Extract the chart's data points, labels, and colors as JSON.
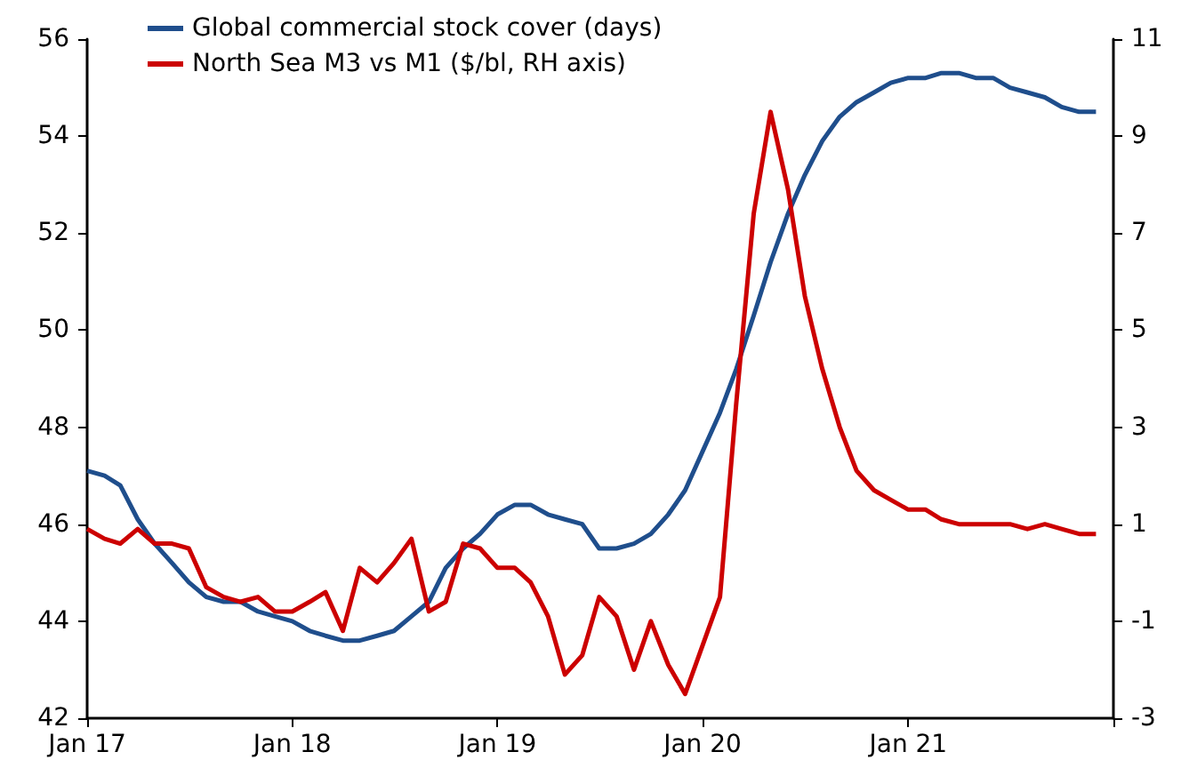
{
  "chart_data": {
    "type": "line",
    "x": [
      "2017-01",
      "2017-02",
      "2017-03",
      "2017-04",
      "2017-05",
      "2017-06",
      "2017-07",
      "2017-08",
      "2017-09",
      "2017-10",
      "2017-11",
      "2017-12",
      "2018-01",
      "2018-02",
      "2018-03",
      "2018-04",
      "2018-05",
      "2018-06",
      "2018-07",
      "2018-08",
      "2018-09",
      "2018-10",
      "2018-11",
      "2018-12",
      "2019-01",
      "2019-02",
      "2019-03",
      "2019-04",
      "2019-05",
      "2019-06",
      "2019-07",
      "2019-08",
      "2019-09",
      "2019-10",
      "2019-11",
      "2019-12",
      "2020-01",
      "2020-02",
      "2020-03",
      "2020-04",
      "2020-05",
      "2020-06",
      "2020-07",
      "2020-08",
      "2020-09",
      "2020-10",
      "2020-11",
      "2020-12",
      "2021-01",
      "2021-02",
      "2021-03",
      "2021-04",
      "2021-05",
      "2021-06",
      "2021-07",
      "2021-08",
      "2021-09",
      "2021-10",
      "2021-11",
      "2021-12"
    ],
    "series": [
      {
        "name": "Global commercial stock cover (days)",
        "color": "#1f4e8c",
        "values": [
          47.1,
          47.0,
          46.8,
          46.1,
          45.6,
          45.2,
          44.8,
          44.5,
          44.4,
          44.4,
          44.2,
          44.1,
          44.0,
          43.8,
          43.7,
          43.6,
          43.6,
          43.7,
          43.8,
          44.1,
          44.4,
          45.1,
          45.5,
          45.8,
          46.2,
          46.4,
          46.4,
          46.2,
          46.1,
          46.0,
          45.5,
          45.5,
          45.6,
          45.8,
          46.2,
          46.7,
          47.5,
          48.3,
          49.2,
          50.3,
          51.4,
          52.4,
          53.2,
          53.9,
          54.4,
          54.7,
          54.9,
          55.1,
          55.2,
          55.2,
          55.3,
          55.3,
          55.2,
          55.2,
          55.0,
          54.9,
          54.8,
          54.6,
          54.5,
          54.5
        ]
      },
      {
        "name": "North Sea M3 vs M1 ($/bl, RH axis)",
        "color": "#cc0000",
        "axis": "y2",
        "values": [
          0.9,
          0.7,
          0.6,
          0.9,
          0.6,
          0.6,
          0.5,
          -0.3,
          -0.5,
          -0.6,
          -0.5,
          -0.8,
          -0.8,
          -0.6,
          -0.4,
          -1.2,
          0.1,
          -0.2,
          0.2,
          0.7,
          -0.8,
          -0.6,
          0.6,
          0.5,
          0.1,
          0.1,
          -0.2,
          -0.9,
          -2.1,
          -1.7,
          -0.5,
          -0.9,
          -2.0,
          -1.0,
          -1.9,
          -2.5,
          -1.5,
          -0.5,
          3.5,
          7.4,
          9.5,
          7.9,
          5.7,
          4.2,
          3.0,
          2.1,
          1.7,
          1.5,
          1.3,
          1.3,
          1.1,
          1.0,
          1.0,
          1.0,
          1.0,
          0.9,
          1.0,
          0.9,
          0.8,
          0.8
        ]
      }
    ],
    "xlim": [
      "2017-01",
      "2022-01"
    ],
    "xticks": [
      {
        "value": "2017-01",
        "label": "Jan 17"
      },
      {
        "value": "2018-01",
        "label": "Jan 18"
      },
      {
        "value": "2019-01",
        "label": "Jan 19"
      },
      {
        "value": "2020-01",
        "label": "Jan 20"
      },
      {
        "value": "2021-01",
        "label": "Jan 21"
      },
      {
        "value": "2022-01",
        "label": null
      }
    ],
    "ylim": [
      42,
      56
    ],
    "yticks": [
      42,
      44,
      46,
      48,
      50,
      52,
      54,
      56
    ],
    "y2lim": [
      -3,
      11
    ],
    "y2ticks": [
      -3,
      -1,
      1,
      3,
      5,
      7,
      9,
      11
    ],
    "grid": false,
    "legend": "top left",
    "marker": "none",
    "line_style": "solid"
  }
}
